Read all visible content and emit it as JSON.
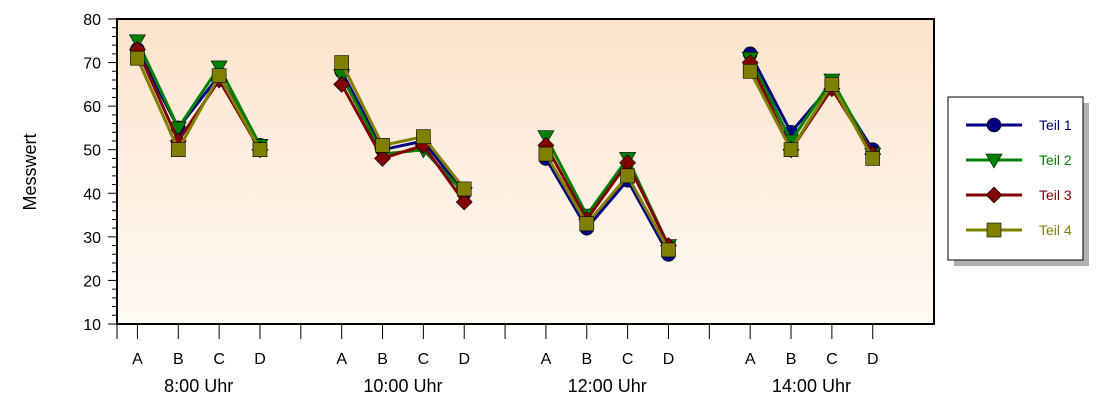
{
  "chart_data": {
    "type": "line",
    "title": "",
    "ylabel": "Messwert",
    "xlabel": "",
    "ylim": [
      10,
      80
    ],
    "yticks": [
      10,
      20,
      30,
      40,
      50,
      60,
      70,
      80
    ],
    "categories": [
      "A",
      "B",
      "C",
      "D"
    ],
    "groups": [
      "8:00 Uhr",
      "10:00 Uhr",
      "12:00 Uhr",
      "14:00 Uhr"
    ],
    "grid": false,
    "legend_position": "right",
    "background": "gradient peach",
    "series": [
      {
        "name": "Teil 1",
        "color": "#000080",
        "marker": "circle",
        "values": [
          [
            73,
            55,
            67,
            51
          ],
          [
            68,
            50,
            52,
            40
          ],
          [
            48,
            32,
            43,
            26
          ],
          [
            72,
            54,
            65,
            50
          ]
        ]
      },
      {
        "name": "Teil 2",
        "color": "#008000",
        "marker": "triangle-down",
        "values": [
          [
            75,
            55,
            69,
            51
          ],
          [
            67,
            49,
            50,
            40
          ],
          [
            53,
            35,
            48,
            28
          ],
          [
            71,
            52,
            66,
            49
          ]
        ]
      },
      {
        "name": "Teil 3",
        "color": "#800000",
        "marker": "diamond",
        "values": [
          [
            73,
            52,
            66,
            50
          ],
          [
            65,
            48,
            51,
            38
          ],
          [
            51,
            34,
            47,
            28
          ],
          [
            70,
            50,
            64,
            49
          ]
        ]
      },
      {
        "name": "Teil 4",
        "color": "#808000",
        "marker": "square",
        "values": [
          [
            71,
            50,
            67,
            50
          ],
          [
            70,
            51,
            53,
            41
          ],
          [
            49,
            33,
            44,
            27
          ],
          [
            68,
            50,
            65,
            48
          ]
        ]
      }
    ]
  }
}
